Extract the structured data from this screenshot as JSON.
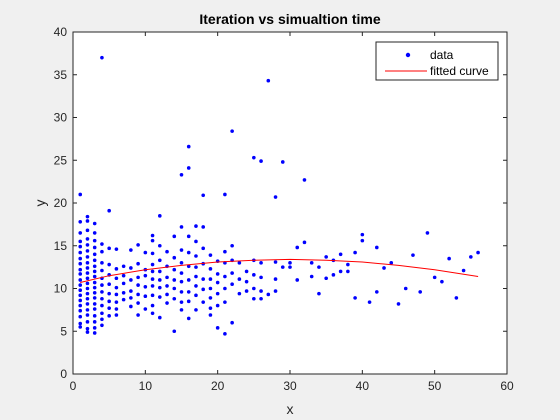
{
  "chart_data": {
    "type": "scatter",
    "title": "Iteration vs simualtion time",
    "xlabel": "x",
    "ylabel": "y",
    "xlim": [
      0,
      60
    ],
    "ylim": [
      0,
      40
    ],
    "xticks": [
      0,
      10,
      20,
      30,
      40,
      50,
      60
    ],
    "yticks": [
      0,
      5,
      10,
      15,
      20,
      25,
      30,
      35,
      40
    ],
    "grid": false,
    "legend_position": "top-right",
    "colors": {
      "data": "#0000ff",
      "fit": "#ff0000",
      "axes": "#262626",
      "background": "#ffffff",
      "figure": "#f0f0f0"
    },
    "series": [
      {
        "name": "data",
        "style": "markers",
        "points": [
          [
            1,
            21.0
          ],
          [
            1,
            17.8
          ],
          [
            1,
            16.5
          ],
          [
            1,
            15.5
          ],
          [
            1,
            14.9
          ],
          [
            1,
            14.2
          ],
          [
            1,
            13.5
          ],
          [
            1,
            12.9
          ],
          [
            1,
            12.2
          ],
          [
            1,
            11.7
          ],
          [
            1,
            11.0
          ],
          [
            1,
            10.4
          ],
          [
            1,
            9.8
          ],
          [
            1,
            9.2
          ],
          [
            1,
            8.6
          ],
          [
            1,
            8.0
          ],
          [
            1,
            7.4
          ],
          [
            1,
            6.7
          ],
          [
            1,
            5.9
          ],
          [
            1,
            5.5
          ],
          [
            2,
            18.4
          ],
          [
            2,
            17.9
          ],
          [
            2,
            16.8
          ],
          [
            2,
            15.8
          ],
          [
            2,
            15.1
          ],
          [
            2,
            14.4
          ],
          [
            2,
            13.7
          ],
          [
            2,
            13.0
          ],
          [
            2,
            12.4
          ],
          [
            2,
            11.8
          ],
          [
            2,
            11.2
          ],
          [
            2,
            10.6
          ],
          [
            2,
            10.0
          ],
          [
            2,
            9.4
          ],
          [
            2,
            8.8
          ],
          [
            2,
            8.2
          ],
          [
            2,
            7.5
          ],
          [
            2,
            6.9
          ],
          [
            2,
            6.1
          ],
          [
            2,
            5.3
          ],
          [
            2,
            4.9
          ],
          [
            3,
            17.6
          ],
          [
            3,
            16.5
          ],
          [
            3,
            15.6
          ],
          [
            3,
            14.8
          ],
          [
            3,
            14.0
          ],
          [
            3,
            13.3
          ],
          [
            3,
            12.6
          ],
          [
            3,
            12.0
          ],
          [
            3,
            11.4
          ],
          [
            3,
            10.7
          ],
          [
            3,
            10.1
          ],
          [
            3,
            9.5
          ],
          [
            3,
            8.9
          ],
          [
            3,
            8.2
          ],
          [
            3,
            7.6
          ],
          [
            3,
            6.8
          ],
          [
            3,
            6.1
          ],
          [
            3,
            5.4
          ],
          [
            3,
            4.8
          ],
          [
            4,
            37.0
          ],
          [
            4,
            15.2
          ],
          [
            4,
            14.3
          ],
          [
            4,
            13.0
          ],
          [
            4,
            12.1
          ],
          [
            4,
            11.2
          ],
          [
            4,
            10.4
          ],
          [
            4,
            9.6
          ],
          [
            4,
            8.8
          ],
          [
            4,
            8.0
          ],
          [
            4,
            7.1
          ],
          [
            4,
            6.4
          ],
          [
            4,
            5.7
          ],
          [
            5,
            19.1
          ],
          [
            5,
            14.7
          ],
          [
            5,
            12.8
          ],
          [
            5,
            11.6
          ],
          [
            5,
            10.5
          ],
          [
            5,
            9.4
          ],
          [
            5,
            8.5
          ],
          [
            5,
            7.7
          ],
          [
            5,
            6.8
          ],
          [
            6,
            14.6
          ],
          [
            6,
            12.3
          ],
          [
            6,
            11.2
          ],
          [
            6,
            10.1
          ],
          [
            6,
            9.3
          ],
          [
            6,
            8.4
          ],
          [
            6,
            7.6
          ],
          [
            6,
            6.9
          ],
          [
            7,
            12.6
          ],
          [
            7,
            11.5
          ],
          [
            7,
            10.6
          ],
          [
            7,
            9.5
          ],
          [
            7,
            8.7
          ],
          [
            8,
            14.5
          ],
          [
            8,
            12.4
          ],
          [
            8,
            11.0
          ],
          [
            8,
            9.7
          ],
          [
            8,
            8.9
          ],
          [
            8,
            7.9
          ],
          [
            9,
            15.1
          ],
          [
            9,
            12.9
          ],
          [
            9,
            11.3
          ],
          [
            9,
            10.4
          ],
          [
            9,
            9.3
          ],
          [
            9,
            8.3
          ],
          [
            9,
            6.9
          ],
          [
            10,
            14.2
          ],
          [
            10,
            12.2
          ],
          [
            10,
            11.5
          ],
          [
            10,
            10.2
          ],
          [
            10,
            9.1
          ],
          [
            10,
            7.6
          ],
          [
            11,
            16.2
          ],
          [
            11,
            15.6
          ],
          [
            11,
            14.1
          ],
          [
            11,
            12.8
          ],
          [
            11,
            12.0
          ],
          [
            11,
            11.1
          ],
          [
            11,
            10.3
          ],
          [
            11,
            9.2
          ],
          [
            11,
            8.0
          ],
          [
            11,
            7.1
          ],
          [
            12,
            18.5
          ],
          [
            12,
            15.0
          ],
          [
            12,
            13.3
          ],
          [
            12,
            12.0
          ],
          [
            12,
            11.0
          ],
          [
            12,
            10.1
          ],
          [
            12,
            9.0
          ],
          [
            12,
            6.6
          ],
          [
            13,
            14.3
          ],
          [
            13,
            12.6
          ],
          [
            13,
            11.3
          ],
          [
            13,
            10.3
          ],
          [
            13,
            9.3
          ],
          [
            13,
            8.3
          ],
          [
            14,
            16.1
          ],
          [
            14,
            13.6
          ],
          [
            14,
            12.2
          ],
          [
            14,
            11.0
          ],
          [
            14,
            10.0
          ],
          [
            14,
            8.8
          ],
          [
            14,
            5.0
          ],
          [
            15,
            23.3
          ],
          [
            15,
            17.2
          ],
          [
            15,
            14.5
          ],
          [
            15,
            13.0
          ],
          [
            15,
            11.8
          ],
          [
            15,
            10.8
          ],
          [
            15,
            9.6
          ],
          [
            15,
            8.4
          ],
          [
            15,
            7.5
          ],
          [
            16,
            26.6
          ],
          [
            16,
            24.1
          ],
          [
            16,
            16.1
          ],
          [
            16,
            14.2
          ],
          [
            16,
            12.6
          ],
          [
            16,
            11.0
          ],
          [
            16,
            9.6
          ],
          [
            16,
            8.5
          ],
          [
            16,
            6.5
          ],
          [
            17,
            17.3
          ],
          [
            17,
            15.5
          ],
          [
            17,
            13.8
          ],
          [
            17,
            12.5
          ],
          [
            17,
            11.4
          ],
          [
            17,
            10.3
          ],
          [
            17,
            9.2
          ],
          [
            17,
            7.5
          ],
          [
            18,
            20.9
          ],
          [
            18,
            17.2
          ],
          [
            18,
            14.7
          ],
          [
            18,
            12.9
          ],
          [
            18,
            11.1
          ],
          [
            18,
            9.9
          ],
          [
            18,
            8.4
          ],
          [
            19,
            13.9
          ],
          [
            19,
            12.3
          ],
          [
            19,
            11.1
          ],
          [
            19,
            10.0
          ],
          [
            19,
            8.9
          ],
          [
            19,
            7.7
          ],
          [
            19,
            6.9
          ],
          [
            20,
            13.2
          ],
          [
            20,
            11.7
          ],
          [
            20,
            10.7
          ],
          [
            20,
            9.4
          ],
          [
            20,
            8.0
          ],
          [
            20,
            5.4
          ],
          [
            21,
            21.0
          ],
          [
            21,
            14.3
          ],
          [
            21,
            13.0
          ],
          [
            21,
            11.4
          ],
          [
            21,
            10.0
          ],
          [
            21,
            8.4
          ],
          [
            21,
            4.7
          ],
          [
            22,
            28.4
          ],
          [
            22,
            15.0
          ],
          [
            22,
            13.3
          ],
          [
            22,
            11.8
          ],
          [
            22,
            10.5
          ],
          [
            22,
            6.0
          ],
          [
            23,
            13.0
          ],
          [
            23,
            11.1
          ],
          [
            23,
            9.4
          ],
          [
            24,
            12.0
          ],
          [
            24,
            10.8
          ],
          [
            24,
            9.7
          ],
          [
            25,
            25.3
          ],
          [
            25,
            13.3
          ],
          [
            25,
            11.6
          ],
          [
            25,
            10.0
          ],
          [
            25,
            8.8
          ],
          [
            26,
            24.9
          ],
          [
            26,
            13.0
          ],
          [
            26,
            11.3
          ],
          [
            26,
            9.7
          ],
          [
            26,
            8.8
          ],
          [
            27,
            34.3
          ],
          [
            27,
            9.3
          ],
          [
            28,
            20.7
          ],
          [
            28,
            13.1
          ],
          [
            28,
            11.1
          ],
          [
            28,
            9.7
          ],
          [
            29,
            24.8
          ],
          [
            29,
            12.5
          ],
          [
            30,
            13.0
          ],
          [
            30,
            12.5
          ],
          [
            31,
            14.8
          ],
          [
            31,
            11.0
          ],
          [
            32,
            22.7
          ],
          [
            32,
            15.4
          ],
          [
            33,
            13.0
          ],
          [
            33,
            11.4
          ],
          [
            34,
            12.5
          ],
          [
            34,
            9.4
          ],
          [
            35,
            13.7
          ],
          [
            35,
            11.2
          ],
          [
            36,
            13.3
          ],
          [
            36,
            11.6
          ],
          [
            37,
            14.0
          ],
          [
            37,
            12.0
          ],
          [
            38,
            12.8
          ],
          [
            38,
            12.0
          ],
          [
            39,
            14.2
          ],
          [
            39,
            8.9
          ],
          [
            40,
            16.3
          ],
          [
            40,
            15.6
          ],
          [
            41,
            8.4
          ],
          [
            42,
            14.8
          ],
          [
            42,
            9.6
          ],
          [
            43,
            12.4
          ],
          [
            44,
            13.0
          ],
          [
            45,
            8.2
          ],
          [
            46,
            10.0
          ],
          [
            47,
            13.9
          ],
          [
            48,
            9.6
          ],
          [
            49,
            16.5
          ],
          [
            50,
            11.3
          ],
          [
            51,
            10.8
          ],
          [
            52,
            13.5
          ],
          [
            53,
            8.9
          ],
          [
            54,
            12.1
          ],
          [
            55,
            13.7
          ],
          [
            56,
            14.2
          ]
        ]
      },
      {
        "name": "fitted curve",
        "style": "line",
        "points": [
          [
            1,
            10.7
          ],
          [
            5,
            11.5
          ],
          [
            10,
            12.2
          ],
          [
            15,
            12.7
          ],
          [
            20,
            13.1
          ],
          [
            25,
            13.3
          ],
          [
            30,
            13.4
          ],
          [
            35,
            13.3
          ],
          [
            40,
            13.1
          ],
          [
            45,
            12.7
          ],
          [
            50,
            12.2
          ],
          [
            53,
            11.8
          ],
          [
            56,
            11.4
          ]
        ]
      }
    ]
  }
}
